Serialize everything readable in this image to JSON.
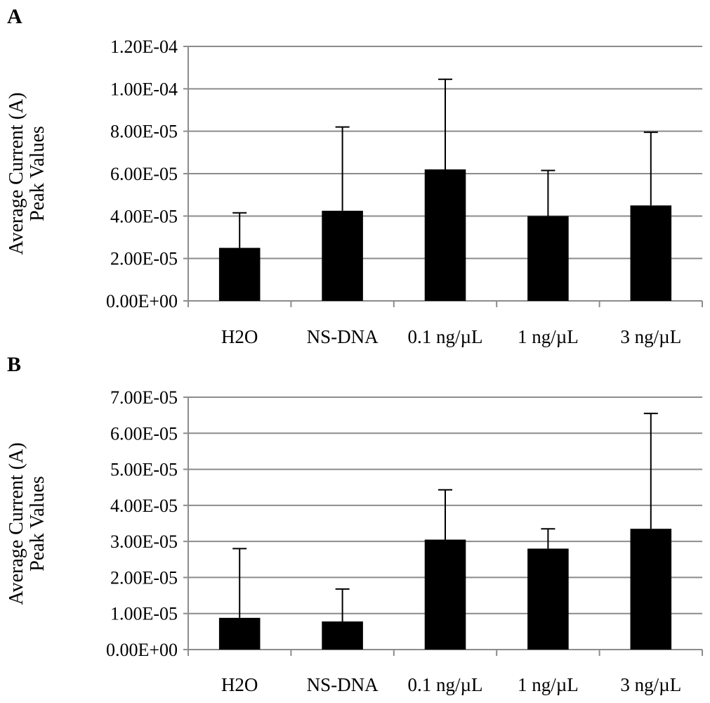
{
  "figure": {
    "panels": [
      "A",
      "B"
    ]
  },
  "colors": {
    "bar": "#000000",
    "grid": "#8c8c8c",
    "axis": "#8c8c8c",
    "text": "#000000",
    "background": "#ffffff"
  },
  "chart_data": [
    {
      "panel": "A",
      "type": "bar",
      "title": "",
      "xlabel": "",
      "ylabel": [
        "Average Current (A)",
        "Peak Values"
      ],
      "categories": [
        "H2O",
        "NS-DNA",
        "0.1 ng/µL",
        "1 ng/µL",
        "3 ng/µL"
      ],
      "values": [
        2.5e-05,
        4.25e-05,
        6.2e-05,
        4e-05,
        4.5e-05
      ],
      "error_upper": [
        1.65e-05,
        3.95e-05,
        4.25e-05,
        2.15e-05,
        3.45e-05
      ],
      "ylim": [
        0,
        0.00012
      ],
      "yticks": [
        0,
        2e-05,
        4e-05,
        6e-05,
        8e-05,
        0.0001,
        0.00012
      ],
      "ytick_labels": [
        "0.00E+00",
        "2.00E-05",
        "4.00E-05",
        "6.00E-05",
        "8.00E-05",
        "1.00E-04",
        "1.20E-04"
      ],
      "grid": true,
      "legend": "none"
    },
    {
      "panel": "B",
      "type": "bar",
      "title": "",
      "xlabel": "",
      "ylabel": [
        "Average Current (A)",
        "Peak Values"
      ],
      "categories": [
        "H2O",
        "NS-DNA",
        "0.1 ng/µL",
        "1 ng/µL",
        "3 ng/µL"
      ],
      "values": [
        8.8e-06,
        7.8e-06,
        3.05e-05,
        2.8e-05,
        3.35e-05
      ],
      "error_upper": [
        1.92e-05,
        9e-06,
        1.38e-05,
        5.5e-06,
        3.2e-05
      ],
      "ylim": [
        0,
        7e-05
      ],
      "yticks": [
        0,
        1e-05,
        2e-05,
        3e-05,
        4e-05,
        5e-05,
        6e-05,
        7e-05
      ],
      "ytick_labels": [
        "0.00E+00",
        "1.00E-05",
        "2.00E-05",
        "3.00E-05",
        "4.00E-05",
        "5.00E-05",
        "6.00E-05",
        "7.00E-05"
      ],
      "grid": true,
      "legend": "none"
    }
  ]
}
